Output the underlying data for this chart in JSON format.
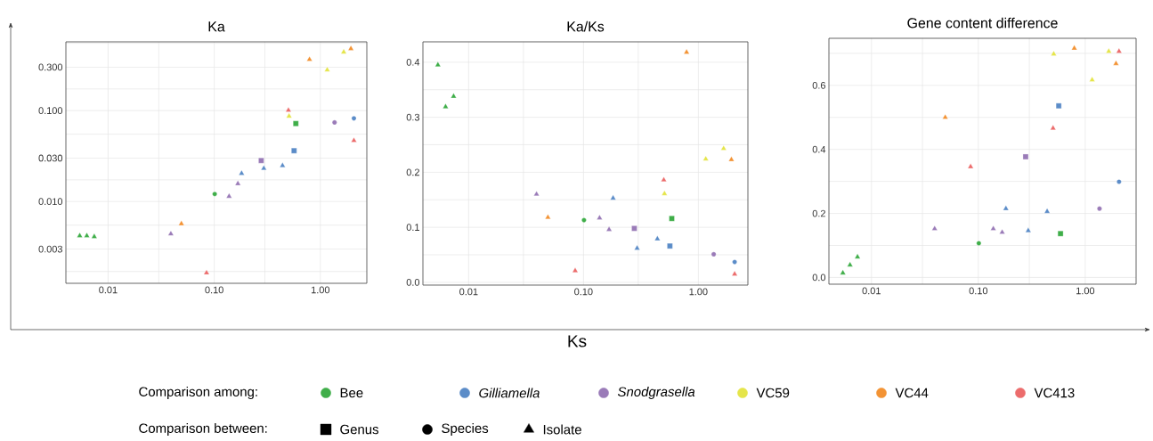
{
  "chart_data": [
    {
      "type": "scatter",
      "title": "Ka",
      "log": "xy",
      "grid": true,
      "xlim": [
        0.004,
        2.74
      ],
      "ylim": [
        0.00126,
        0.57
      ],
      "xticks": [
        {
          "value": 0.01,
          "label": "0.01"
        },
        {
          "value": 0.03,
          "label": null
        },
        {
          "value": 0.1,
          "label": "0.10"
        },
        {
          "value": 0.3,
          "label": null
        },
        {
          "value": 1,
          "label": "1.00"
        }
      ],
      "yticks": [
        {
          "value": 0.0017,
          "label": null
        },
        0.003,
        {
          "value": 0.0055,
          "label": null
        },
        {
          "value": 0.01,
          "label": "0.010"
        },
        {
          "value": 0.0173,
          "label": null
        },
        {
          "value": 0.03,
          "label": "0.030"
        },
        {
          "value": 0.055,
          "label": null
        },
        {
          "value": 0.1,
          "label": "0.100"
        },
        {
          "value": 0.173,
          "label": null
        },
        {
          "value": 0.3,
          "label": "0.300"
        },
        {
          "value": 0.55,
          "label": null
        }
      ],
      "series": [
        {
          "color": "#3fae49",
          "marker": "triangle",
          "x": [
            0.0054,
            0.0063,
            0.0074
          ],
          "values": [
            0.0042,
            0.0042,
            0.0041
          ]
        },
        {
          "color": "#3fae49",
          "marker": "circle",
          "x": [
            0.101
          ],
          "values": [
            0.0121
          ]
        },
        {
          "color": "#3fae49",
          "marker": "square",
          "x": [
            0.587
          ],
          "values": [
            0.072
          ]
        },
        {
          "color": "#5b8cc8",
          "marker": "triangle",
          "x": [
            0.181,
            0.293,
            0.44
          ],
          "values": [
            0.0204,
            0.0231,
            0.0248
          ]
        },
        {
          "color": "#5b8cc8",
          "marker": "square",
          "x": [
            0.565
          ],
          "values": [
            0.0362
          ]
        },
        {
          "color": "#5b8cc8",
          "marker": "circle",
          "x": [
            2.07
          ],
          "values": [
            0.0822
          ]
        },
        {
          "color": "#9a7bb8",
          "marker": "triangle",
          "x": [
            0.039,
            0.138,
            0.167
          ],
          "values": [
            0.0044,
            0.0114,
            0.0157
          ]
        },
        {
          "color": "#9a7bb8",
          "marker": "square",
          "x": [
            0.277
          ],
          "values": [
            0.0282
          ]
        },
        {
          "color": "#9a7bb8",
          "marker": "circle",
          "x": [
            1.36
          ],
          "values": [
            0.074
          ]
        },
        {
          "color": "#e5e54a",
          "marker": "triangle",
          "x": [
            0.507,
            1.16,
            1.66
          ],
          "values": [
            0.0867,
            0.28,
            0.44
          ]
        },
        {
          "color": "#f39334",
          "marker": "triangle",
          "x": [
            0.049,
            0.79,
            1.94
          ],
          "values": [
            0.0057,
            0.365,
            0.48
          ]
        },
        {
          "color": "#ec6c6c",
          "marker": "triangle",
          "x": [
            0.0846,
            0.5,
            2.07
          ],
          "values": [
            0.00164,
            0.1007,
            0.0468
          ]
        }
      ]
    },
    {
      "type": "scatter",
      "title": "Ka/Ks",
      "xlabel": "Ks",
      "log": "x",
      "grid": true,
      "xlim": [
        0.004,
        2.7
      ],
      "ylim": [
        -0.005,
        0.437
      ],
      "xticks": [
        {
          "value": 0.01,
          "label": "0.01"
        },
        {
          "value": 0.03,
          "label": null
        },
        {
          "value": 0.1,
          "label": "0.10"
        },
        {
          "value": 0.3,
          "label": null
        },
        {
          "value": 1,
          "label": "1.00"
        }
      ],
      "yticks": [
        {
          "value": 0,
          "label": "0.0"
        },
        {
          "value": 0.05,
          "label": null
        },
        0.1,
        {
          "value": 0.15,
          "label": null
        },
        0.2,
        {
          "value": 0.25,
          "label": null
        },
        0.3,
        {
          "value": 0.35,
          "label": null
        },
        0.4
      ],
      "series": [
        {
          "color": "#3fae49",
          "marker": "triangle",
          "x": [
            0.0054,
            0.0063,
            0.0074
          ],
          "values": [
            0.395,
            0.319,
            0.338
          ]
        },
        {
          "color": "#3fae49",
          "marker": "circle",
          "x": [
            0.101
          ],
          "values": [
            0.113
          ]
        },
        {
          "color": "#3fae49",
          "marker": "square",
          "x": [
            0.587
          ],
          "values": [
            0.116
          ]
        },
        {
          "color": "#5b8cc8",
          "marker": "triangle",
          "x": [
            0.181,
            0.293,
            0.44
          ],
          "values": [
            0.153,
            0.062,
            0.079
          ]
        },
        {
          "color": "#5b8cc8",
          "marker": "square",
          "x": [
            0.565
          ],
          "values": [
            0.066
          ]
        },
        {
          "color": "#5b8cc8",
          "marker": "circle",
          "x": [
            2.07
          ],
          "values": [
            0.037
          ]
        },
        {
          "color": "#9a7bb8",
          "marker": "triangle",
          "x": [
            0.039,
            0.138,
            0.167
          ],
          "values": [
            0.16,
            0.117,
            0.096
          ]
        },
        {
          "color": "#9a7bb8",
          "marker": "square",
          "x": [
            0.277
          ],
          "values": [
            0.098
          ]
        },
        {
          "color": "#9a7bb8",
          "marker": "circle",
          "x": [
            1.36
          ],
          "values": [
            0.051
          ]
        },
        {
          "color": "#e5e54a",
          "marker": "triangle",
          "x": [
            0.507,
            1.16,
            1.66
          ],
          "values": [
            0.161,
            0.224,
            0.243
          ]
        },
        {
          "color": "#f39334",
          "marker": "triangle",
          "x": [
            0.049,
            0.79,
            1.94
          ],
          "values": [
            0.118,
            0.418,
            0.223
          ]
        },
        {
          "color": "#ec6c6c",
          "marker": "triangle",
          "x": [
            0.0846,
            0.5,
            2.07
          ],
          "values": [
            0.021,
            0.186,
            0.015
          ]
        }
      ]
    },
    {
      "type": "scatter",
      "title": "Gene content difference",
      "log": "x",
      "grid": true,
      "xlim": [
        0.004,
        2.99
      ],
      "ylim": [
        -0.021,
        0.747
      ],
      "xticks": [
        {
          "value": 0.01,
          "label": "0.01"
        },
        {
          "value": 0.03,
          "label": null
        },
        {
          "value": 0.1,
          "label": "0.10"
        },
        {
          "value": 0.3,
          "label": null
        },
        {
          "value": 1,
          "label": "1.00"
        }
      ],
      "yticks": [
        {
          "value": 0,
          "label": "0.0"
        },
        {
          "value": 0.1,
          "label": null
        },
        0.2,
        {
          "value": 0.3,
          "label": null
        },
        0.4,
        {
          "value": 0.5,
          "label": null
        },
        0.6,
        {
          "value": 0.7,
          "label": null
        }
      ],
      "series": [
        {
          "color": "#3fae49",
          "marker": "triangle",
          "x": [
            0.0054,
            0.0063,
            0.0074
          ],
          "values": [
            0.014,
            0.039,
            0.064
          ]
        },
        {
          "color": "#3fae49",
          "marker": "circle",
          "x": [
            0.101
          ],
          "values": [
            0.107
          ]
        },
        {
          "color": "#3fae49",
          "marker": "square",
          "x": [
            0.587
          ],
          "values": [
            0.137
          ]
        },
        {
          "color": "#5b8cc8",
          "marker": "triangle",
          "x": [
            0.181,
            0.293,
            0.44
          ],
          "values": [
            0.215,
            0.146,
            0.206
          ]
        },
        {
          "color": "#5b8cc8",
          "marker": "square",
          "x": [
            0.565
          ],
          "values": [
            0.536
          ]
        },
        {
          "color": "#5b8cc8",
          "marker": "circle",
          "x": [
            2.07
          ],
          "values": [
            0.299
          ]
        },
        {
          "color": "#9a7bb8",
          "marker": "triangle",
          "x": [
            0.039,
            0.138,
            0.167
          ],
          "values": [
            0.152,
            0.152,
            0.141
          ]
        },
        {
          "color": "#9a7bb8",
          "marker": "square",
          "x": [
            0.277
          ],
          "values": [
            0.377
          ]
        },
        {
          "color": "#9a7bb8",
          "marker": "circle",
          "x": [
            1.36
          ],
          "values": [
            0.215
          ]
        },
        {
          "color": "#e5e54a",
          "marker": "triangle",
          "x": [
            0.507,
            1.16,
            1.66
          ],
          "values": [
            0.698,
            0.617,
            0.706
          ]
        },
        {
          "color": "#f39334",
          "marker": "triangle",
          "x": [
            0.049,
            0.79,
            1.94
          ],
          "values": [
            0.5,
            0.716,
            0.668
          ]
        },
        {
          "color": "#ec6c6c",
          "marker": "triangle",
          "x": [
            0.0846,
            0.5,
            2.07
          ],
          "values": [
            0.346,
            0.466,
            0.706
          ]
        }
      ]
    },
    {
      "type": "other",
      "legend_title": "Comparison among:",
      "legend": "bottom",
      "series": [
        {
          "name": "Bee",
          "color": "#3fae49",
          "marker": "circle"
        },
        {
          "name": "*Gilliamella*",
          "color": "#5b8cc8",
          "marker": "circle"
        },
        {
          "name": "*Snodgrasella*",
          "color": "#9a7bb8",
          "marker": "circle"
        },
        {
          "name": "VC59",
          "color": "#e5e54a",
          "marker": "circle"
        },
        {
          "name": "VC44",
          "color": "#f39334",
          "marker": "circle"
        },
        {
          "name": "VC413",
          "color": "#ec6c6c",
          "marker": "circle"
        }
      ]
    },
    {
      "type": "other",
      "legend_title": "Comparison between:",
      "legend": "bottom",
      "series": [
        {
          "name": "Genus",
          "color": "#000000",
          "marker": "square"
        },
        {
          "name": "Species",
          "color": "#000000",
          "marker": "circle"
        },
        {
          "name": "Isolate",
          "color": "#000000",
          "marker": "triangle"
        }
      ]
    }
  ]
}
